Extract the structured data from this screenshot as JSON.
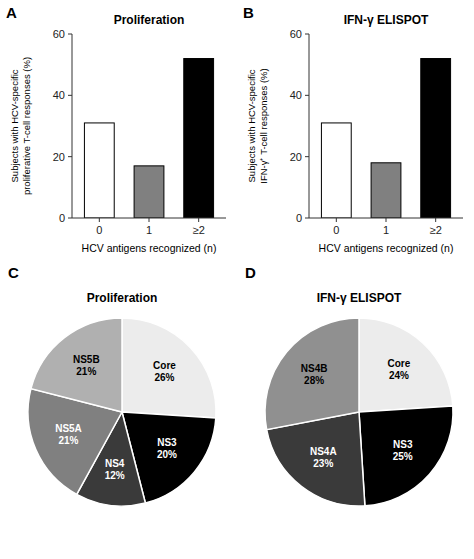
{
  "chart_data": [
    {
      "type": "bar",
      "title": "Proliferation",
      "annotations": [
        "A"
      ],
      "categories": [
        "0",
        "1",
        "≥2"
      ],
      "values": [
        31,
        17,
        52
      ],
      "colors": [
        "#ffffff",
        "#808080",
        "#000000"
      ],
      "x_label": "HCV antigens recognized (n)",
      "y_label": "Subjects with HCV-specific\nproliferative T-cell responses (%)",
      "ylim": [
        0,
        60
      ],
      "yticks": [
        0,
        20,
        40,
        60
      ],
      "grid": false
    },
    {
      "type": "bar",
      "title": "IFN-γ ELISPOT",
      "annotations": [
        "B"
      ],
      "categories": [
        "0",
        "1",
        "≥2"
      ],
      "values": [
        31,
        18,
        52
      ],
      "colors": [
        "#ffffff",
        "#808080",
        "#000000"
      ],
      "x_label": "HCV antigens recognized (n)",
      "y_label": "Subjects with HCV-specific\nIFN-γ⁺ T-cell responses (%)",
      "ylim": [
        0,
        60
      ],
      "yticks": [
        0,
        20,
        40,
        60
      ],
      "grid": false
    },
    {
      "type": "pie",
      "title": "Proliferation",
      "annotations": [
        "C"
      ],
      "categories": [
        "Core",
        "NS3",
        "NS4",
        "NS5A",
        "NS5B"
      ],
      "values": [
        26,
        20,
        12,
        21,
        21
      ],
      "value_labels": [
        "26%",
        "20%",
        "12%",
        "21%",
        "21%"
      ],
      "colors": [
        "#ececec",
        "#000000",
        "#3a3a3a",
        "#808080",
        "#b0b0b0"
      ],
      "data_labels": true
    },
    {
      "type": "pie",
      "title": "IFN-γ ELISPOT",
      "annotations": [
        "D"
      ],
      "categories": [
        "Core",
        "NS3",
        "NS4A",
        "NS4B"
      ],
      "values": [
        24,
        25,
        23,
        28
      ],
      "value_labels": [
        "24%",
        "25%",
        "23%",
        "28%"
      ],
      "colors": [
        "#ececec",
        "#000000",
        "#3a3a3a",
        "#909090"
      ],
      "data_labels": true
    }
  ]
}
